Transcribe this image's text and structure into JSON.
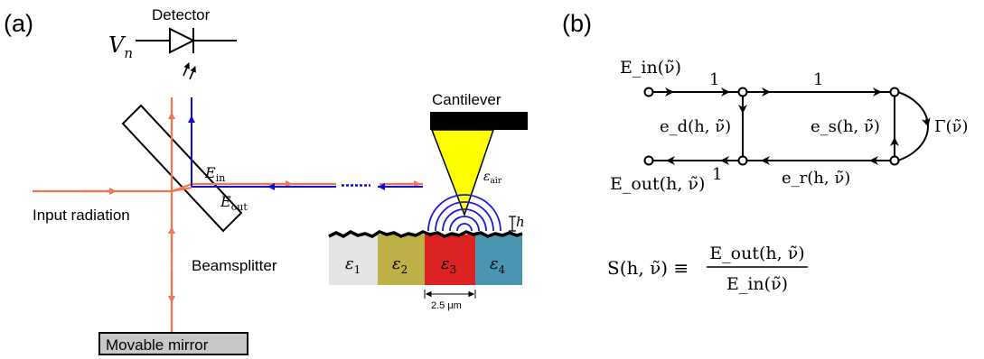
{
  "panel_a": {
    "label": "(a)",
    "detector": "Detector",
    "vn": {
      "base": "V",
      "sub": "n"
    },
    "input_radiation": "Input radiation",
    "beamsplitter": "Beamsplitter",
    "movable_mirror": "Movable mirror",
    "e_in": {
      "base": "E",
      "sub": "in"
    },
    "e_out": {
      "base": "E",
      "sub": "out"
    },
    "cantilever": "Cantilever",
    "eps_air": {
      "base": "ε",
      "sub": "air"
    },
    "h": "h",
    "sample": [
      {
        "base": "ε",
        "sub": "1"
      },
      {
        "base": "ε",
        "sub": "2"
      },
      {
        "base": "ε",
        "sub": "3"
      },
      {
        "base": "ε",
        "sub": "4"
      }
    ],
    "scale_bar": "2.5 μm",
    "colors": {
      "orange_beam": "#f07850",
      "blue_beam": "#1010d0",
      "tip_yellow": "#ffff00",
      "wave_blue": "#1a1adc",
      "eps1": "#e4e4e4",
      "eps2": "#bcb046",
      "eps3": "#dc2222",
      "eps4": "#4a96b0",
      "mirror_gray": "#c8c8c8"
    }
  },
  "panel_b": {
    "label": "(b)",
    "e_in": "E_in(ν̃)",
    "e_out": "E_out(h, ν̃)",
    "edge_top_left": "1",
    "edge_top_right": "1",
    "edge_bottom_left": "1",
    "e_d": "e_d(h, ν̃)",
    "e_s": "e_s(h, ν̃)",
    "e_r": "e_r(h, ν̃)",
    "gamma": "Γ(ν̃)",
    "equation": {
      "lhs": "S(h, ν̃) ≡",
      "numerator": "E_out(h, ν̃)",
      "denominator": "E_in(ν̃)"
    }
  }
}
